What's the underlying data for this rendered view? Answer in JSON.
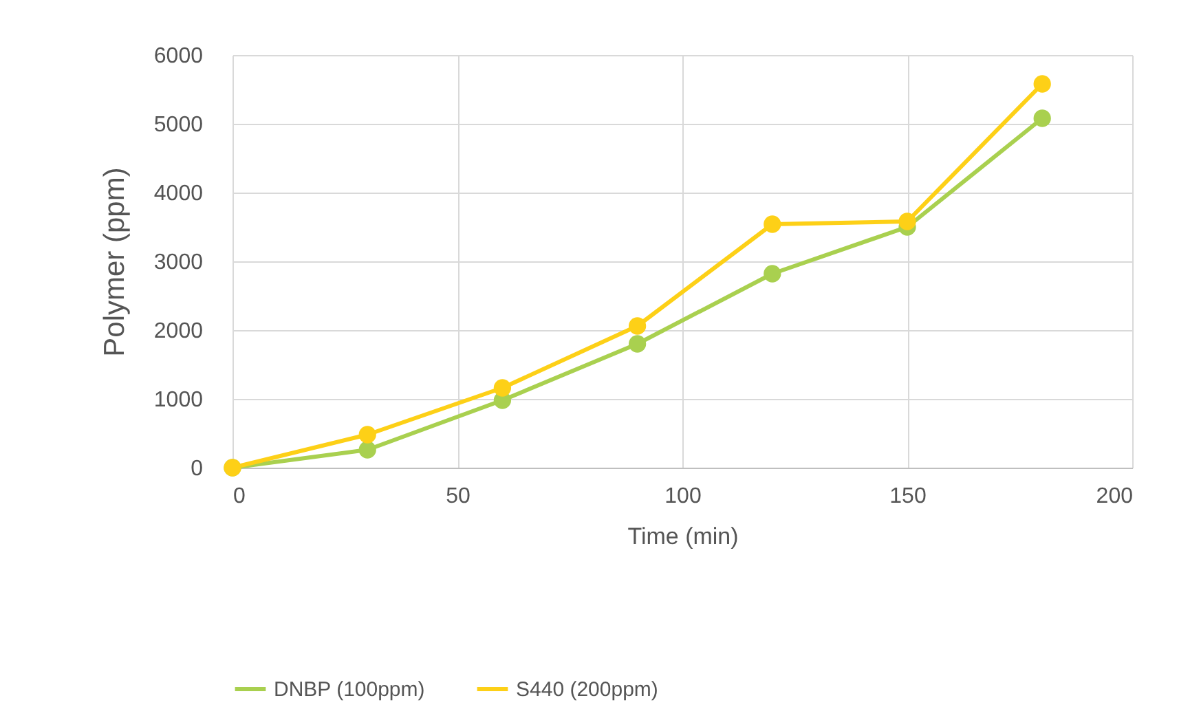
{
  "chart_data": {
    "type": "line",
    "xlabel": "Time (min)",
    "ylabel": "Polymer (ppm)",
    "x": [
      0,
      30,
      60,
      90,
      120,
      150,
      180
    ],
    "series": [
      {
        "name": "DNBP (100ppm)",
        "color": "#a9d04f",
        "values": [
          0,
          260,
          980,
          1800,
          2820,
          3500,
          5080
        ]
      },
      {
        "name": "S440 (200ppm)",
        "color": "#fdd017",
        "values": [
          0,
          480,
          1160,
          2060,
          3540,
          3580,
          5580
        ]
      }
    ],
    "xlim": [
      0,
      200
    ],
    "xticks": [
      0,
      50,
      100,
      150,
      200
    ],
    "ylim": [
      0,
      6000
    ],
    "yticks": [
      0,
      1000,
      2000,
      3000,
      4000,
      5000,
      6000
    ],
    "grid": true,
    "legend": "bottom",
    "marker": "circle",
    "line_style": "solid"
  }
}
